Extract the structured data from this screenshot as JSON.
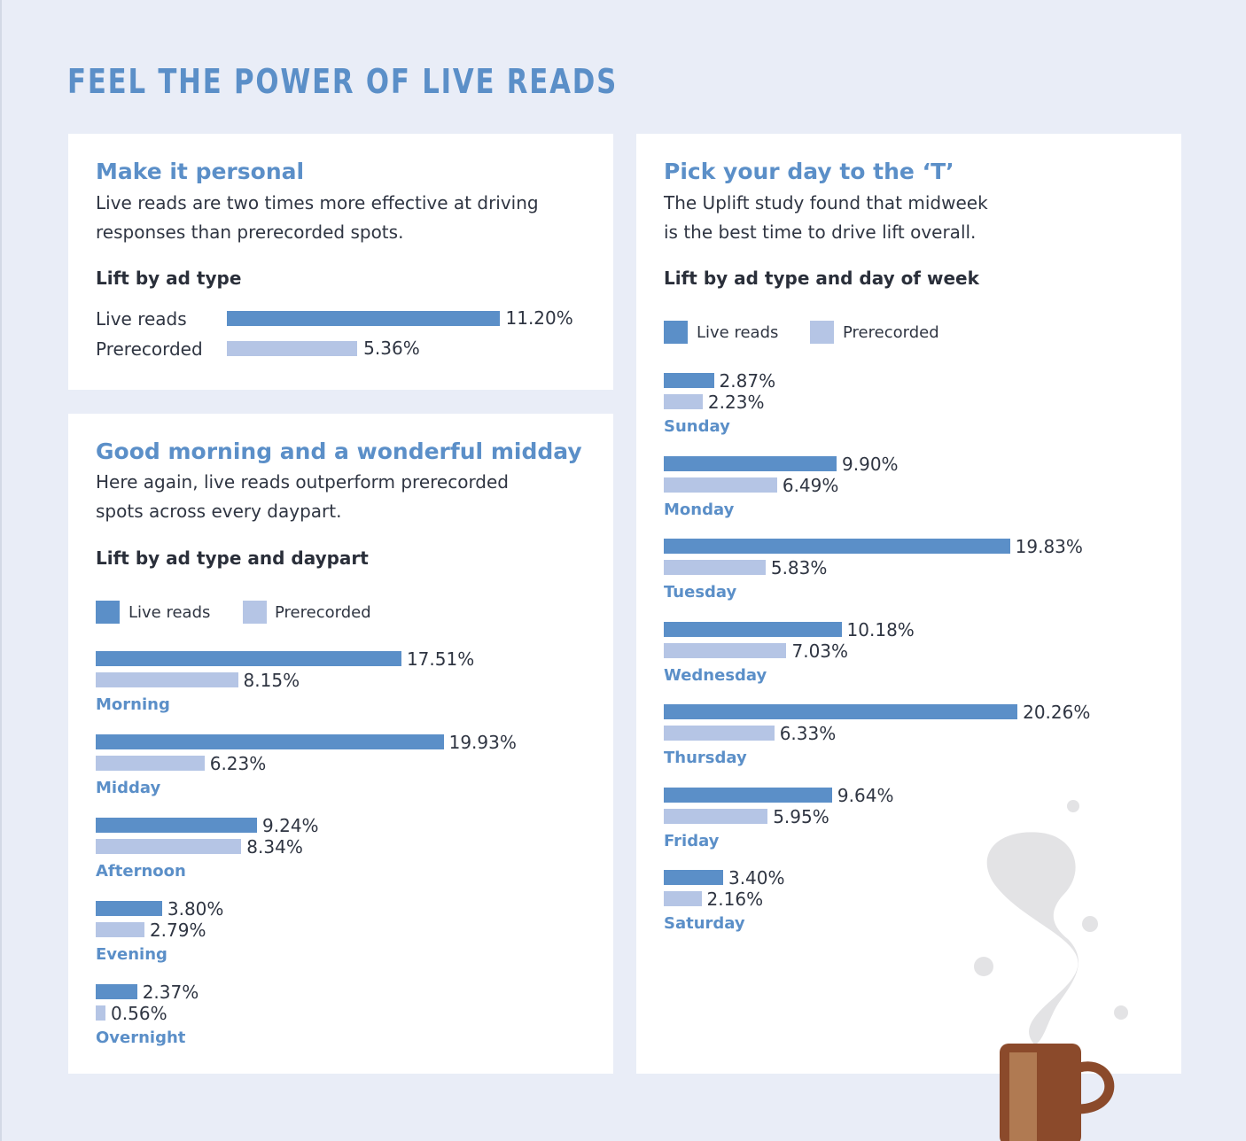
{
  "page_title": "FEEL THE POWER OF LIVE READS",
  "colors": {
    "live": "#5b8fc8",
    "prerecorded": "#b5c5e5",
    "accent": "#5b8fc8",
    "background": "#e9edf7"
  },
  "cards": {
    "personal": {
      "title": "Make it personal",
      "desc_line1": "Live reads are two times more effective at driving",
      "desc_line2": "responses than prerecorded spots.",
      "chart_title": "Lift by ad type"
    },
    "daypart": {
      "title": "Good morning and a wonderful midday",
      "desc_line1": "Here again, live reads outperform prerecorded",
      "desc_line2": "spots across every daypart.",
      "chart_title": "Lift by ad type and daypart",
      "legend_live": "Live reads",
      "legend_pre": "Prerecorded"
    },
    "day": {
      "title": "Pick your day to the ‘T’",
      "desc_line1": "The Uplift study found that midweek",
      "desc_line2": "is the best time to drive lift overall.",
      "chart_title": "Lift by ad type and day of week",
      "legend_live": "Live reads",
      "legend_pre": "Prerecorded"
    }
  },
  "chart_data": [
    {
      "type": "bar",
      "title": "Lift by ad type",
      "categories": [
        "Live reads",
        "Prerecorded"
      ],
      "values": [
        11.2,
        5.36
      ],
      "value_labels": [
        "11.20%",
        "5.36%"
      ]
    },
    {
      "type": "bar",
      "title": "Lift by ad type and daypart",
      "categories": [
        "Morning",
        "Midday",
        "Afternoon",
        "Evening",
        "Overnight"
      ],
      "series": [
        {
          "name": "Live reads",
          "values": [
            17.51,
            19.93,
            9.24,
            3.8,
            2.37
          ],
          "labels": [
            "17.51%",
            "19.93%",
            "9.24%",
            "3.80%",
            "2.37%"
          ]
        },
        {
          "name": "Prerecorded",
          "values": [
            8.15,
            6.23,
            8.34,
            2.79,
            0.56
          ],
          "labels": [
            "8.15%",
            "6.23%",
            "8.34%",
            "2.79%",
            "0.56%"
          ]
        }
      ]
    },
    {
      "type": "bar",
      "title": "Lift by ad type and day of week",
      "categories": [
        "Sunday",
        "Monday",
        "Tuesday",
        "Wednesday",
        "Thursday",
        "Friday",
        "Saturday"
      ],
      "series": [
        {
          "name": "Live reads",
          "values": [
            2.87,
            9.9,
            19.83,
            10.18,
            20.26,
            9.64,
            3.4
          ],
          "labels": [
            "2.87%",
            "9.90%",
            "19.83%",
            "10.18%",
            "20.26%",
            "9.64%",
            "3.40%"
          ]
        },
        {
          "name": "Prerecorded",
          "values": [
            2.23,
            6.49,
            5.83,
            7.03,
            6.33,
            5.95,
            2.16
          ],
          "labels": [
            "2.23%",
            "6.49%",
            "5.83%",
            "7.03%",
            "6.33%",
            "5.95%",
            "2.16%"
          ]
        }
      ]
    }
  ]
}
